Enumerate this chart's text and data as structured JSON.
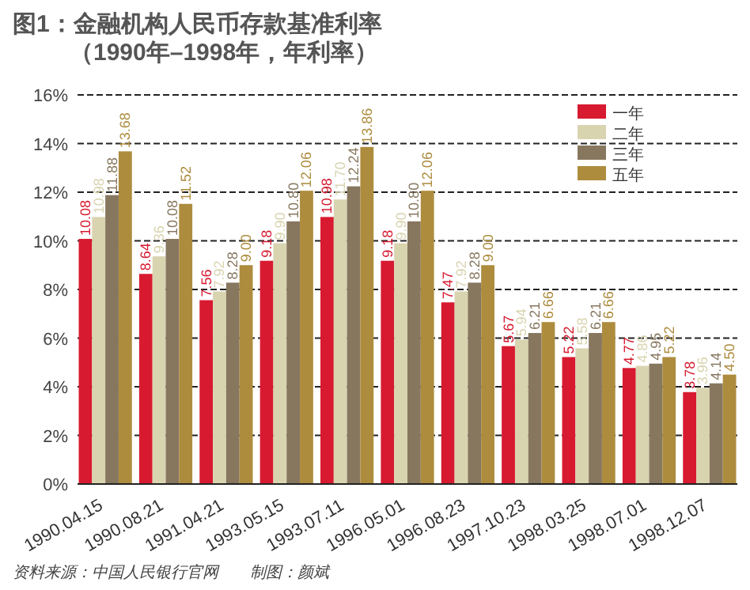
{
  "chart_data": {
    "type": "bar",
    "title": "图1：金融机构人民币存款基准利率",
    "subtitle": "（1990年–1998年，年利率）",
    "categories": [
      "1990.04.15",
      "1990.08.21",
      "1991.04.21",
      "1993.05.15",
      "1993.07.11",
      "1996.05.01",
      "1996.08.23",
      "1997.10.23",
      "1998.03.25",
      "1998.07.01",
      "1998.12.07"
    ],
    "series": [
      {
        "name": "一年",
        "color": "#d71a30",
        "values": [
          10.08,
          8.64,
          7.56,
          9.18,
          10.98,
          9.18,
          7.47,
          5.67,
          5.22,
          4.77,
          3.78
        ],
        "value_labels": [
          "10.08",
          "8.64",
          "7.56",
          "9.18",
          "10.98",
          "9.18",
          "7.47",
          "5.67",
          "5.22",
          "4.77",
          "3.78"
        ]
      },
      {
        "name": "二年",
        "color": "#d9d4b0",
        "values": [
          10.98,
          9.36,
          7.92,
          9.9,
          11.7,
          9.9,
          7.92,
          5.94,
          5.58,
          4.86,
          3.96
        ],
        "value_labels": [
          "10.98",
          "9.36",
          "7.92",
          "9.90",
          "11.70",
          "9.90",
          "7.92",
          "5.94",
          "5.58",
          "4.86",
          "3.96"
        ]
      },
      {
        "name": "三年",
        "color": "#87775f",
        "values": [
          11.88,
          10.08,
          8.28,
          10.8,
          12.24,
          10.8,
          8.28,
          6.21,
          6.21,
          4.95,
          4.14
        ],
        "value_labels": [
          "11.88",
          "10.08",
          "8.28",
          "10.80",
          "12.24",
          "10.80",
          "8.28",
          "6.21",
          "6.21",
          "4.95",
          "4.14"
        ]
      },
      {
        "name": "五年",
        "color": "#ad8c3e",
        "values": [
          13.68,
          11.52,
          9.0,
          12.06,
          13.86,
          12.06,
          9.0,
          6.66,
          6.66,
          5.22,
          4.5
        ],
        "value_labels": [
          "13.68",
          "11.52",
          "9.00",
          "12.06",
          "13.86",
          "12.06",
          "9.00",
          "6.66",
          "6.66",
          "5.22",
          "4.50"
        ]
      }
    ],
    "ylim": [
      0,
      16
    ],
    "yticks": [
      {
        "value": 0,
        "label": "0%"
      },
      {
        "value": 2,
        "label": "2%"
      },
      {
        "value": 4,
        "label": "4%"
      },
      {
        "value": 6,
        "label": "6%"
      },
      {
        "value": 8,
        "label": "8%"
      },
      {
        "value": 10,
        "label": "10%"
      },
      {
        "value": 12,
        "label": "12%"
      },
      {
        "value": 14,
        "label": "14%"
      },
      {
        "value": 16,
        "label": "16%"
      }
    ],
    "grid": "y",
    "legend": "top right",
    "annotations": [
      "资料来源：中国人民银行官网　　制图：颜斌"
    ]
  }
}
